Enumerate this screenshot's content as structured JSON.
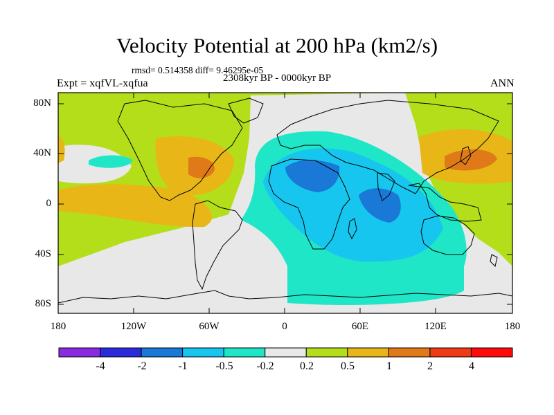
{
  "title": "Velocity Potential at 200 hPa (km2/s)",
  "stats": "rmsd= 0.514358 diff= 9.46295e-05",
  "experiment": "Expt = xqfVL-xqfua",
  "period": "2308kyr BP - 0000kyr BP",
  "season": "ANN",
  "latitude_labels": [
    "80N",
    "40N",
    "0",
    "40S",
    "80S"
  ],
  "longitude_labels": [
    "180",
    "120W",
    "60W",
    "0",
    "60E",
    "120E",
    "180"
  ],
  "colorbar": {
    "labels": [
      "-4",
      "-2",
      "-1",
      "-0.5",
      "-0.2",
      "0.2",
      "0.5",
      "1",
      "2",
      "4"
    ],
    "colors": [
      "#8a2be2",
      "#2a2adc",
      "#1a78d6",
      "#16c6ee",
      "#20e6c8",
      "#e8e8e8",
      "#b4de1a",
      "#e8b616",
      "#e07a18",
      "#ee3a16",
      "#ff0a0a"
    ]
  }
}
